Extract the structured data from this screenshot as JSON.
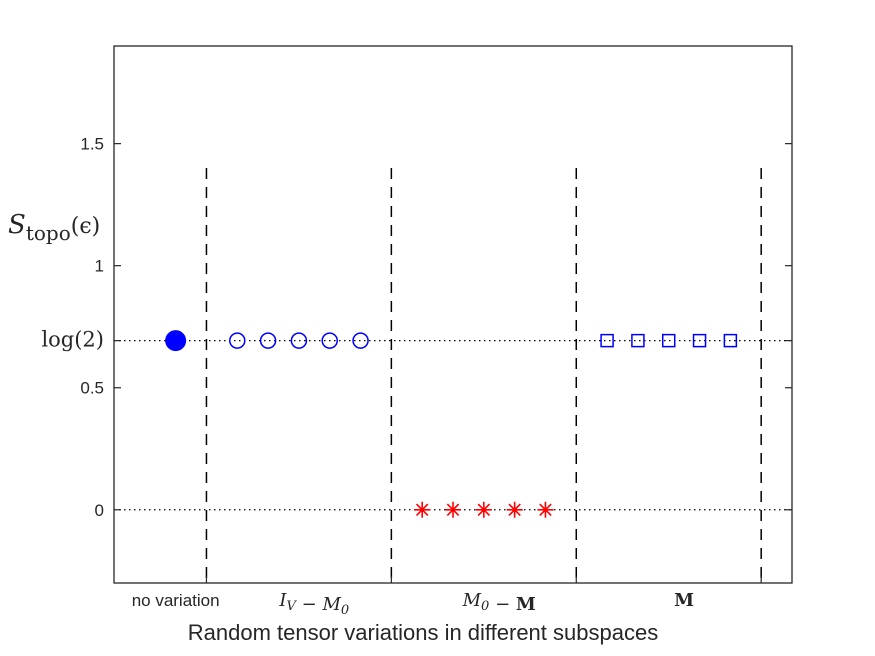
{
  "chart_data": {
    "type": "scatter",
    "xlabel": "Random tensor variations in different subspaces",
    "ylabel": {
      "base": "S",
      "sub": "topo",
      "arg": "(ϵ)"
    },
    "ylim": [
      -0.3,
      1.9
    ],
    "xlim": [
      0,
      22
    ],
    "yticks": [
      {
        "value": 0,
        "label": "0",
        "style": "sans"
      },
      {
        "value": 0.5,
        "label": "0.5",
        "style": "sans"
      },
      {
        "value": 0.693,
        "label": "log(2)",
        "style": "serif"
      },
      {
        "value": 1,
        "label": "1",
        "style": "sans"
      },
      {
        "value": 1.5,
        "label": "1.5",
        "style": "sans"
      }
    ],
    "reference_lines": [
      {
        "y": 0,
        "style": "dotted"
      },
      {
        "y": 0.693,
        "style": "dotted"
      }
    ],
    "dividers": [
      {
        "x": 3,
        "ymax": 1.4
      },
      {
        "x": 9,
        "ymax": 1.4
      },
      {
        "x": 15,
        "ymax": 1.4
      },
      {
        "x": 21,
        "ymax": 1.4
      }
    ],
    "groups": [
      {
        "label": "no variation",
        "label_style": "sans",
        "label_x": 2
      },
      {
        "label": "I_V − M_0",
        "label_style": "math",
        "label_x": 6.5
      },
      {
        "label": "M_0 − M",
        "label_style": "math",
        "label_x": 12.5
      },
      {
        "label": "M",
        "label_style": "math-bold",
        "label_x": 18.5
      }
    ],
    "series": [
      {
        "marker": "filled-circle",
        "color": "#0000ff",
        "x": [
          2
        ],
        "y": [
          0.693
        ]
      },
      {
        "marker": "circle",
        "color": "#0000ff",
        "x": [
          4,
          5,
          6,
          7,
          8
        ],
        "y": [
          0.693,
          0.693,
          0.693,
          0.693,
          0.693
        ]
      },
      {
        "marker": "asterisk",
        "color": "#ff0000",
        "x": [
          10,
          11,
          12,
          13,
          14
        ],
        "y": [
          0,
          0,
          0,
          0,
          0
        ]
      },
      {
        "marker": "square",
        "color": "#0000ff",
        "x": [
          16,
          17,
          18,
          19,
          20
        ],
        "y": [
          0.693,
          0.693,
          0.693,
          0.693,
          0.693
        ]
      }
    ],
    "grid": false,
    "box": true
  }
}
